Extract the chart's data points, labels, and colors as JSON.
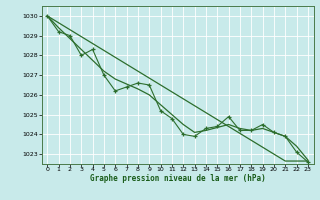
{
  "xlabel": "Graphe pression niveau de la mer (hPa)",
  "xlim": [
    -0.5,
    23.5
  ],
  "ylim": [
    1022.5,
    1030.5
  ],
  "yticks": [
    1023,
    1024,
    1025,
    1026,
    1027,
    1028,
    1029,
    1030
  ],
  "xticks": [
    0,
    1,
    2,
    3,
    4,
    5,
    6,
    7,
    8,
    9,
    10,
    11,
    12,
    13,
    14,
    15,
    16,
    17,
    18,
    19,
    20,
    21,
    22,
    23
  ],
  "bg_color": "#c8eaea",
  "grid_color": "#b0d8d8",
  "line_color": "#2d6e2d",
  "data_line": [
    1030.0,
    1029.2,
    1029.0,
    1028.0,
    1028.3,
    1027.0,
    1026.2,
    1026.4,
    1026.6,
    1026.5,
    1025.2,
    1024.8,
    1024.0,
    1023.9,
    1024.3,
    1024.4,
    1024.9,
    1024.2,
    1024.2,
    1024.5,
    1024.1,
    1023.9,
    1023.1,
    1022.6
  ],
  "smooth_line": [
    1030.0,
    1029.4,
    1028.85,
    1028.3,
    1027.75,
    1027.2,
    1026.8,
    1026.55,
    1026.3,
    1026.0,
    1025.5,
    1025.0,
    1024.5,
    1024.1,
    1024.2,
    1024.35,
    1024.5,
    1024.3,
    1024.2,
    1024.3,
    1024.1,
    1023.9,
    1023.4,
    1022.7
  ],
  "linear_line": [
    1030.0,
    1029.65,
    1029.3,
    1028.95,
    1028.6,
    1028.25,
    1027.9,
    1027.55,
    1027.2,
    1026.85,
    1026.5,
    1026.15,
    1025.8,
    1025.45,
    1025.1,
    1024.75,
    1024.4,
    1024.05,
    1023.7,
    1023.35,
    1023.0,
    1022.65,
    1022.65,
    1022.65
  ]
}
